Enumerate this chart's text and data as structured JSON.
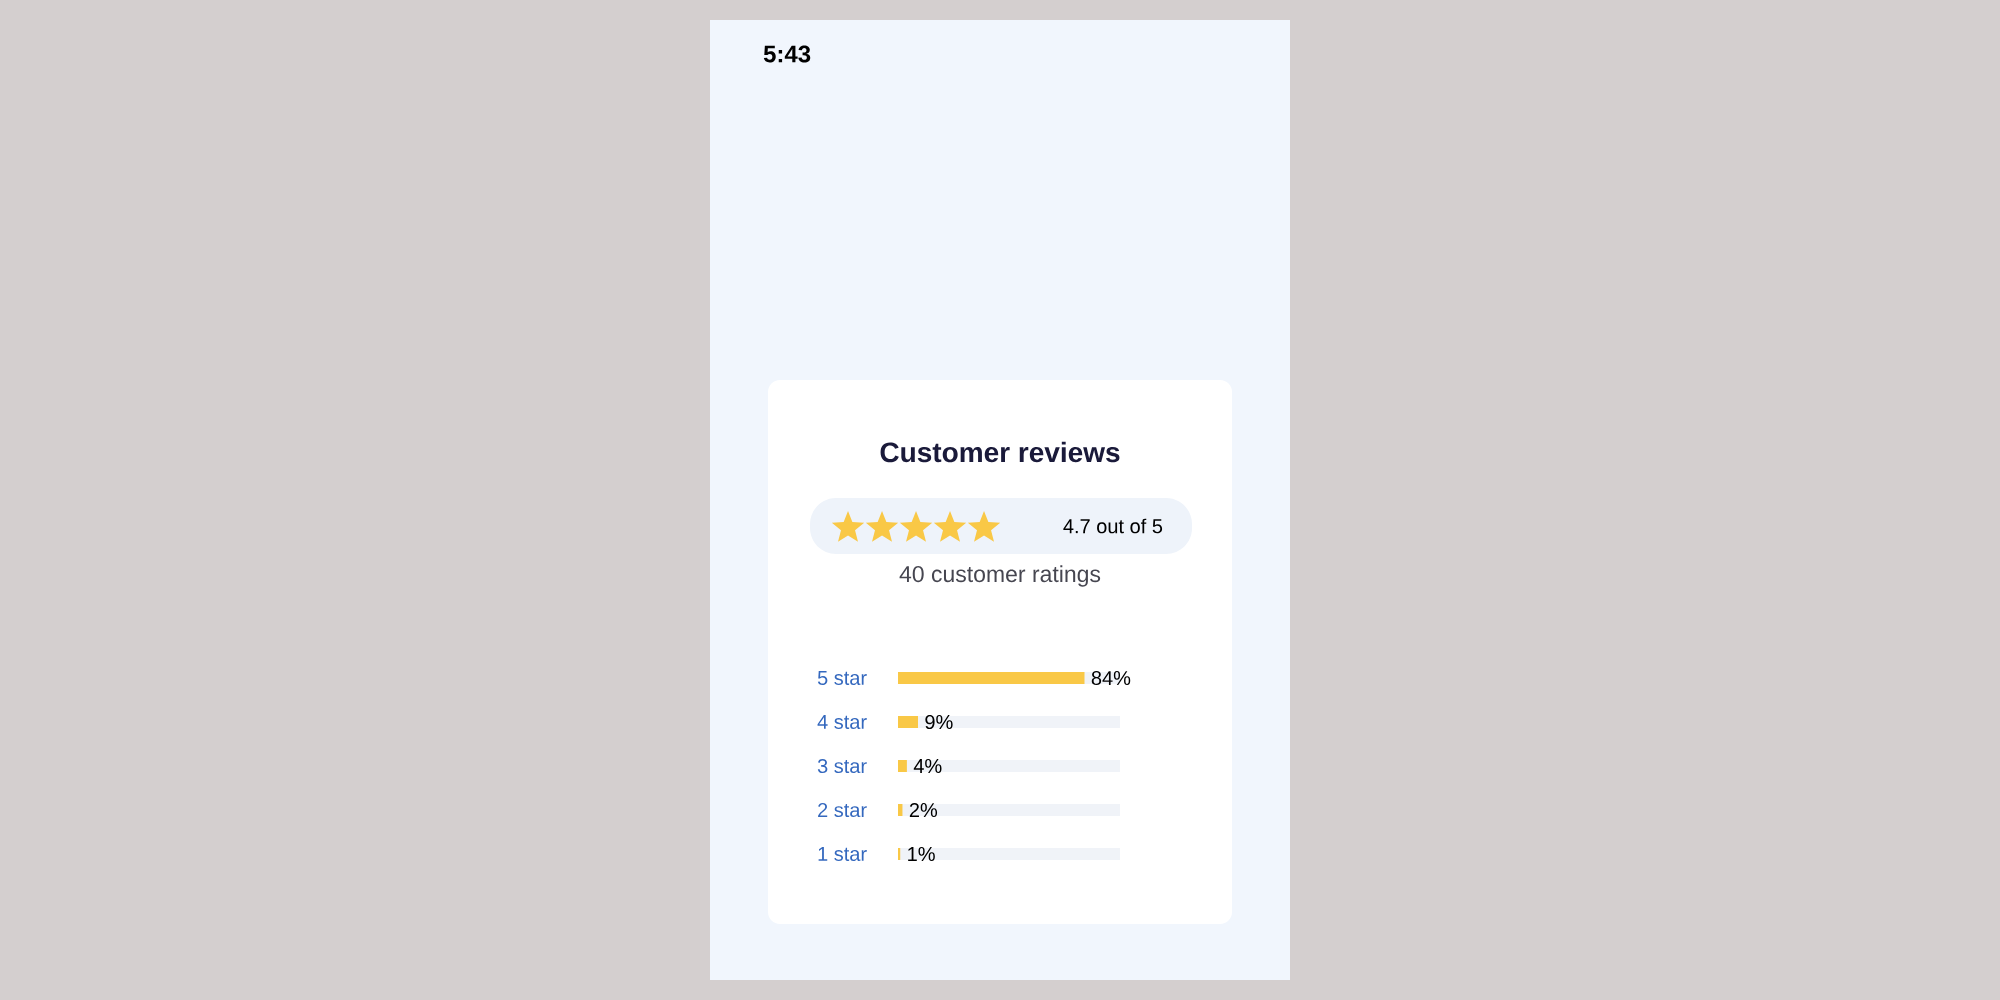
{
  "chart_data": {
    "type": "bar",
    "orientation": "horizontal",
    "title": "Customer reviews",
    "annotations": [
      "5:43",
      "4.7 out of 5",
      "40 customer ratings"
    ],
    "categories": [
      "5 star",
      "4 star",
      "3 star",
      "2 star",
      "1 star"
    ],
    "values": [
      84,
      9,
      4,
      2,
      1
    ],
    "color": "#f9c846",
    "value_labels": [
      "84%",
      "9%",
      "4%",
      "2%",
      "1%"
    ],
    "xlim": [
      0,
      100
    ],
    "tick_labels": "y"
  }
}
